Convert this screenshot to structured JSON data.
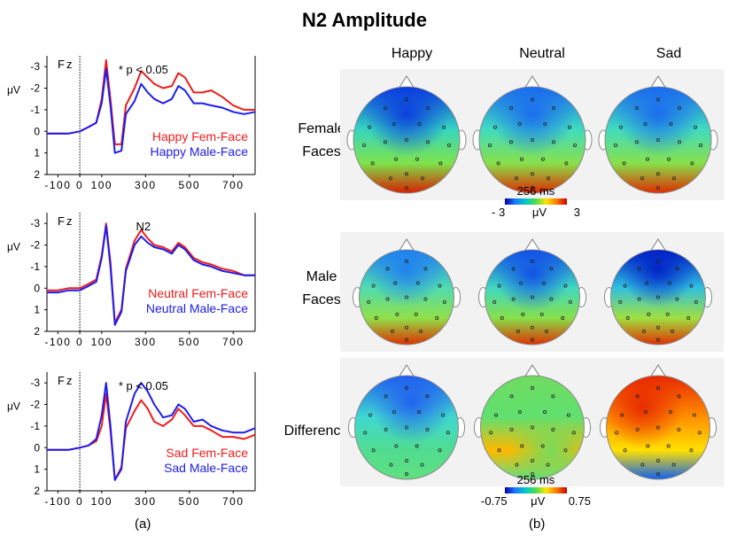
{
  "title": "N2 Amplitude",
  "erp_panels": {
    "x_ticks": [
      "-100",
      "0",
      "100",
      "300",
      "500",
      "700"
    ],
    "y_ticks": [
      "-3",
      "-2",
      "-1",
      "0",
      "1",
      "2"
    ],
    "y_unit": "μV",
    "electrode": "Fz",
    "panel_label": "(a)"
  },
  "topo": {
    "columns": [
      "Happy",
      "Neutral",
      "Sad"
    ],
    "rows": [
      {
        "label_line1": "Female",
        "label_line2": "Faces"
      },
      {
        "label_line1": "Male",
        "label_line2": "Faces"
      },
      {
        "label_line1": "Difference",
        "label_line2": ""
      }
    ],
    "colorbar1": {
      "time": "256 ms",
      "min": "- 3",
      "unit": "μV",
      "max": "3"
    },
    "colorbar2": {
      "time": "256 ms",
      "min": "-0.75",
      "unit": "μV",
      "max": "0.75"
    },
    "panel_label": "(b)"
  },
  "colors": {
    "female": "#ee1c1c",
    "male": "#1c1cee"
  },
  "chart_data": [
    {
      "type": "line",
      "xlim": [
        -150,
        800
      ],
      "ylim": [
        2,
        -3.5
      ],
      "annotation": "* p < 0.05",
      "series": [
        {
          "name": "Happy Fem-Face",
          "x": [
            -150,
            -100,
            -50,
            0,
            40,
            75,
            100,
            120,
            140,
            160,
            190,
            210,
            250,
            280,
            310,
            340,
            380,
            420,
            450,
            480,
            520,
            560,
            600,
            650,
            700,
            750,
            800
          ],
          "y": [
            0.1,
            0.1,
            0.1,
            0.0,
            -0.2,
            -0.4,
            -1.5,
            -3.3,
            -1.5,
            0.6,
            0.6,
            -1.2,
            -2.0,
            -2.8,
            -2.5,
            -2.2,
            -2.0,
            -2.1,
            -2.7,
            -2.5,
            -1.8,
            -1.8,
            -1.9,
            -1.6,
            -1.2,
            -1.0,
            -1.0
          ]
        },
        {
          "name": "Happy Male-Face",
          "x": [
            -150,
            -100,
            -50,
            0,
            40,
            75,
            100,
            120,
            140,
            160,
            190,
            210,
            250,
            280,
            310,
            340,
            380,
            420,
            450,
            480,
            520,
            560,
            600,
            650,
            700,
            750,
            800
          ],
          "y": [
            0.1,
            0.1,
            0.1,
            0.0,
            -0.2,
            -0.4,
            -1.3,
            -2.9,
            -1.2,
            1.0,
            0.9,
            -0.8,
            -1.4,
            -2.2,
            -1.8,
            -1.5,
            -1.3,
            -1.5,
            -2.1,
            -1.9,
            -1.3,
            -1.3,
            -1.2,
            -1.1,
            -0.9,
            -0.8,
            -0.9
          ]
        }
      ]
    },
    {
      "type": "line",
      "xlim": [
        -150,
        800
      ],
      "ylim": [
        2,
        -3.5
      ],
      "annotation": "N2",
      "series": [
        {
          "name": "Neutral Fem-Face",
          "x": [
            -150,
            -100,
            -50,
            0,
            40,
            75,
            100,
            120,
            140,
            160,
            190,
            210,
            250,
            280,
            310,
            340,
            380,
            420,
            450,
            480,
            520,
            560,
            600,
            650,
            700,
            750,
            800
          ],
          "y": [
            0.1,
            0.1,
            0.0,
            0.0,
            -0.2,
            -0.4,
            -1.5,
            -3.0,
            -1.2,
            1.6,
            1.0,
            -0.9,
            -2.2,
            -2.7,
            -2.3,
            -2.0,
            -1.9,
            -1.7,
            -2.1,
            -1.9,
            -1.4,
            -1.2,
            -1.1,
            -0.9,
            -0.8,
            -0.6,
            -0.6
          ]
        },
        {
          "name": "Neutral Male-Face",
          "x": [
            -150,
            -100,
            -50,
            0,
            40,
            75,
            100,
            120,
            140,
            160,
            190,
            210,
            250,
            280,
            310,
            340,
            380,
            420,
            450,
            480,
            520,
            560,
            600,
            650,
            700,
            750,
            800
          ],
          "y": [
            0.2,
            0.2,
            0.1,
            0.1,
            -0.1,
            -0.3,
            -1.4,
            -2.9,
            -1.0,
            1.7,
            1.1,
            -0.8,
            -2.0,
            -2.4,
            -2.1,
            -1.9,
            -1.8,
            -1.6,
            -2.0,
            -1.8,
            -1.3,
            -1.1,
            -1.0,
            -0.8,
            -0.7,
            -0.6,
            -0.6
          ]
        }
      ]
    },
    {
      "type": "line",
      "xlim": [
        -150,
        800
      ],
      "ylim": [
        2,
        -3.5
      ],
      "annotation": "* p < 0.05",
      "series": [
        {
          "name": "Sad Fem-Face",
          "x": [
            -150,
            -100,
            -50,
            0,
            40,
            75,
            100,
            120,
            140,
            160,
            190,
            210,
            250,
            280,
            310,
            340,
            380,
            420,
            450,
            480,
            520,
            560,
            600,
            650,
            700,
            750,
            800
          ],
          "y": [
            0.1,
            0.1,
            0.1,
            0.0,
            -0.1,
            -0.3,
            -1.0,
            -2.5,
            -0.8,
            1.5,
            0.9,
            -0.9,
            -1.7,
            -2.2,
            -1.8,
            -1.2,
            -1.0,
            -1.3,
            -1.8,
            -1.5,
            -1.0,
            -1.0,
            -0.8,
            -0.5,
            -0.5,
            -0.4,
            -0.6
          ]
        },
        {
          "name": "Sad Male-Face",
          "x": [
            -150,
            -100,
            -50,
            0,
            40,
            75,
            100,
            120,
            140,
            160,
            190,
            210,
            250,
            280,
            310,
            340,
            380,
            420,
            450,
            480,
            520,
            560,
            600,
            650,
            700,
            750,
            800
          ],
          "y": [
            0.1,
            0.1,
            0.1,
            0.0,
            -0.1,
            -0.4,
            -1.5,
            -3.0,
            -1.0,
            1.5,
            1.0,
            -1.2,
            -2.5,
            -3.0,
            -2.6,
            -2.0,
            -1.4,
            -1.5,
            -2.0,
            -1.8,
            -1.2,
            -1.3,
            -1.0,
            -0.8,
            -0.7,
            -0.7,
            -0.9
          ]
        }
      ]
    }
  ]
}
